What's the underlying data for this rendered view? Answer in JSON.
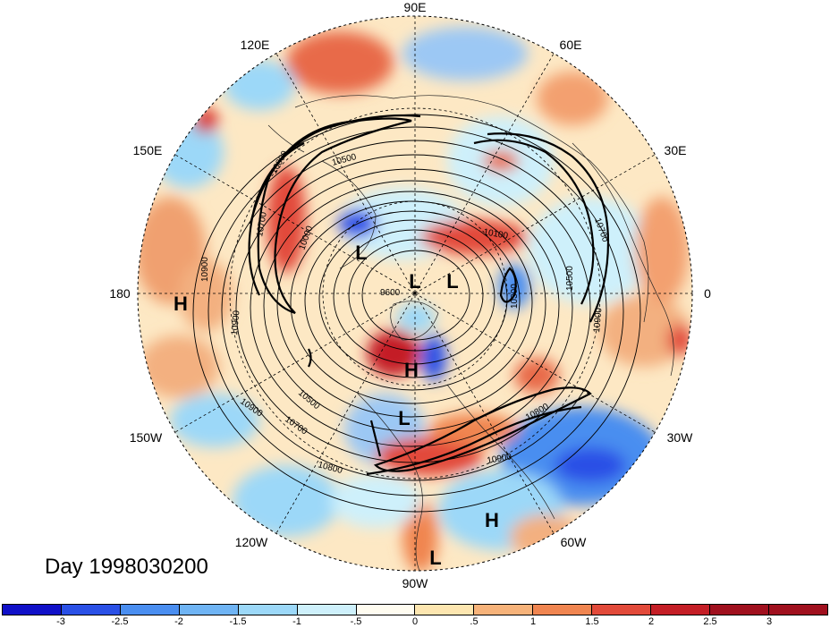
{
  "title": "Day 1998030200",
  "longitude_labels": {
    "lon_90e": "90E",
    "lon_60e": "60E",
    "lon_120e": "120E",
    "lon_150e": "150E",
    "lon_30e": "30E",
    "lon_180": "180",
    "lon_0": "0",
    "lon_150w": "150W",
    "lon_30w": "30W",
    "lon_120w": "120W",
    "lon_60w": "60W",
    "lon_90w": "90W"
  },
  "pressure_centers": [
    "H",
    "L",
    "L",
    "L",
    "H",
    "L",
    "H",
    "L"
  ],
  "contour_labels": [
    "9600",
    "10000",
    "10100",
    "10300",
    "10500",
    "10500",
    "10500",
    "10700",
    "10700",
    "10700",
    "10800",
    "10800",
    "10800",
    "10900",
    "10900",
    "10900",
    "10900",
    "10900"
  ],
  "colorbar": {
    "colors": [
      "#1010c8",
      "#2a50e6",
      "#4a8ef0",
      "#6fb4f4",
      "#9cd8f8",
      "#cef0fb",
      "#fffcf0",
      "#fde6b0",
      "#f7b37a",
      "#f08550",
      "#e24a3a",
      "#c41e26",
      "#a0101e"
    ],
    "labels": [
      "-3",
      "-2.5",
      "-2",
      "-1.5",
      "-1",
      "-.5",
      "0",
      ".5",
      "1",
      "1.5",
      "2",
      "2.5",
      "3"
    ]
  }
}
